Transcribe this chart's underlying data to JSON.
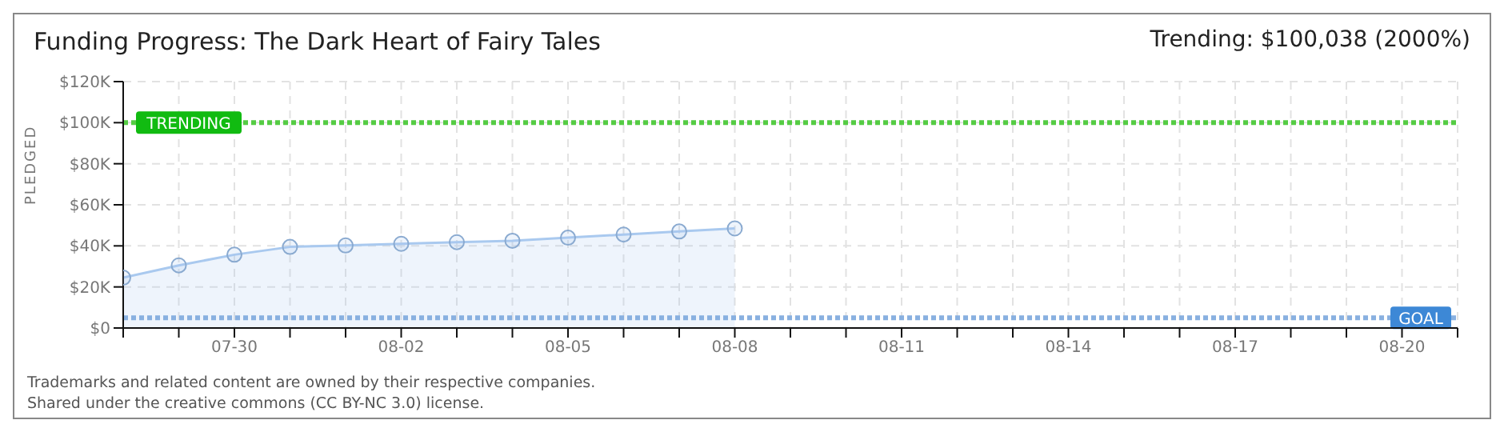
{
  "chart_data": {
    "type": "area",
    "title": "Funding Progress: The Dark Heart of Fairy Tales",
    "subtitle": "Trending:  $100,038 (2000%)",
    "ylabel": "PLEDGED",
    "x": [
      "--07-28",
      "--07-29",
      "--07-30",
      "--07-31",
      "--08-01",
      "--08-02",
      "--08-03",
      "--08-04",
      "--08-05",
      "--08-06",
      "--08-07",
      "--08-08"
    ],
    "series": [
      {
        "color": "#a9c9ef",
        "values": [
          24500,
          30500,
          35700,
          39500,
          40200,
          41000,
          41800,
          42500,
          44000,
          45500,
          47000,
          48500
        ]
      }
    ],
    "xlim": [
      "--07-28",
      "--08-21"
    ],
    "xticks": [
      {
        "value": "--07-28",
        "label": null
      },
      {
        "value": "--07-29",
        "label": null
      },
      {
        "value": "--07-30",
        "label": "07-30"
      },
      {
        "value": "--07-31",
        "label": null
      },
      {
        "value": "--08-01",
        "label": null
      },
      {
        "value": "--08-02",
        "label": "08-02"
      },
      {
        "value": "--08-03",
        "label": null
      },
      {
        "value": "--08-04",
        "label": null
      },
      {
        "value": "--08-05",
        "label": "08-05"
      },
      {
        "value": "--08-06",
        "label": null
      },
      {
        "value": "--08-07",
        "label": null
      },
      {
        "value": "--08-08",
        "label": "08-08"
      },
      {
        "value": "--08-09",
        "label": null
      },
      {
        "value": "--08-10",
        "label": null
      },
      {
        "value": "--08-11",
        "label": "08-11"
      },
      {
        "value": "--08-12",
        "label": null
      },
      {
        "value": "--08-13",
        "label": null
      },
      {
        "value": "--08-14",
        "label": "08-14"
      },
      {
        "value": "--08-15",
        "label": null
      },
      {
        "value": "--08-16",
        "label": null
      },
      {
        "value": "--08-17",
        "label": "08-17"
      },
      {
        "value": "--08-18",
        "label": null
      },
      {
        "value": "--08-19",
        "label": null
      },
      {
        "value": "--08-20",
        "label": "08-20"
      },
      {
        "value": "--08-21",
        "label": null
      }
    ],
    "ylim": [
      0,
      120000
    ],
    "yticks": [
      {
        "value": 0,
        "label": "$0"
      },
      {
        "value": 20000,
        "label": "$20K"
      },
      {
        "value": 40000,
        "label": "$40K"
      },
      {
        "value": 60000,
        "label": "$60K"
      },
      {
        "value": 80000,
        "label": "$80K"
      },
      {
        "value": 100000,
        "label": "$100K"
      },
      {
        "value": 120000,
        "label": "$120K"
      }
    ],
    "ref_lines": [
      {
        "axis": "y",
        "value": 100038,
        "label": "TRENDING",
        "color": "#55cc44",
        "line_style": "dotted"
      },
      {
        "axis": "y",
        "value": 5000,
        "label": "GOAL",
        "color": "#88b0e0",
        "line_style": "dotted"
      }
    ],
    "grid": true,
    "marker": "circle",
    "line_style": "solid",
    "annotations": [
      "Trademarks and related content are owned by their respective companies.",
      "Shared under the creative commons (CC BY-NC 3.0) license."
    ]
  }
}
